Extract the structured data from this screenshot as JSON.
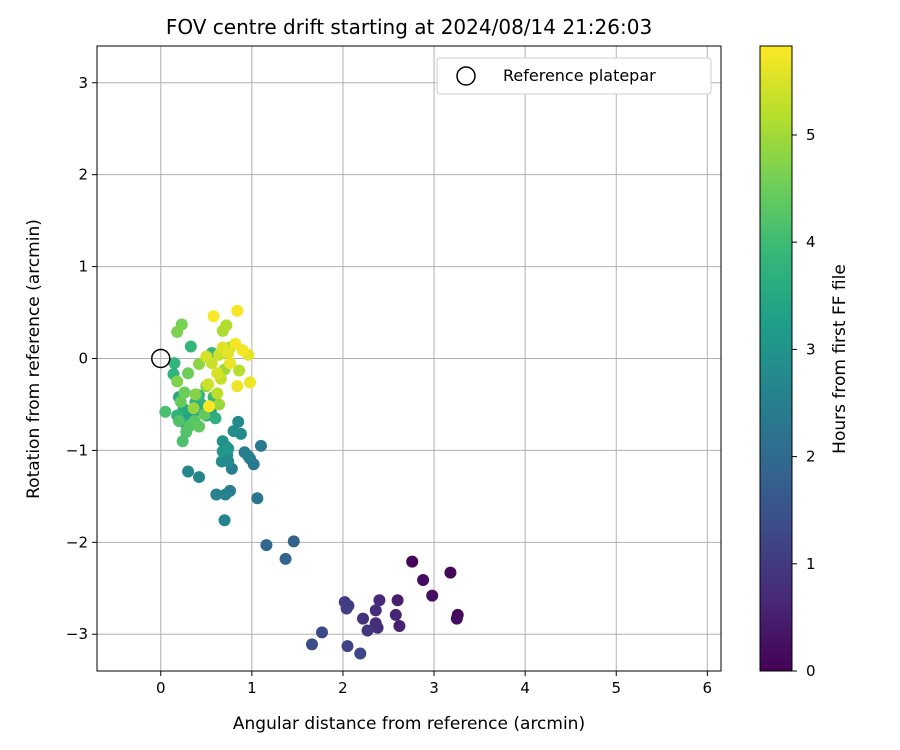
{
  "chart_data": {
    "type": "scatter",
    "title": "FOV centre drift starting at 2024/08/14 21:26:03",
    "xlabel": "Angular distance from reference (arcmin)",
    "ylabel": "Rotation from reference (arcmin)",
    "xlim": [
      -0.7,
      6.15
    ],
    "ylim": [
      -3.4,
      3.4
    ],
    "xticks": [
      0,
      1,
      2,
      3,
      4,
      5,
      6
    ],
    "yticks": [
      -3,
      -2,
      -1,
      0,
      1,
      2,
      3
    ],
    "grid": true,
    "legend": {
      "position": "top-right",
      "entries": [
        "Reference platepar"
      ]
    },
    "reference_point": {
      "name": "Reference platepar",
      "x": 0,
      "y": 0
    },
    "colorbar": {
      "label": "Hours from first FF file",
      "colormap": "viridis",
      "range": [
        0,
        5.83
      ],
      "ticks": [
        0,
        1,
        2,
        3,
        4,
        5
      ]
    },
    "colormap_stops": [
      "#440154",
      "#482878",
      "#3e4989",
      "#31688e",
      "#26828e",
      "#1f9e89",
      "#35b779",
      "#6ece58",
      "#b5de2b",
      "#fde725"
    ],
    "points": [
      [
        2.76,
        -2.21,
        0.05
      ],
      [
        3.18,
        -2.33,
        0.1
      ],
      [
        2.88,
        -2.41,
        0.2
      ],
      [
        2.98,
        -2.58,
        0.25
      ],
      [
        3.26,
        -2.79,
        0.15
      ],
      [
        3.25,
        -2.83,
        0.2
      ],
      [
        2.6,
        -2.63,
        0.5
      ],
      [
        2.62,
        -2.91,
        0.55
      ],
      [
        2.58,
        -2.79,
        0.6
      ],
      [
        2.4,
        -2.63,
        0.65
      ],
      [
        2.36,
        -2.74,
        0.75
      ],
      [
        2.36,
        -2.88,
        0.7
      ],
      [
        2.38,
        -2.93,
        0.8
      ],
      [
        2.22,
        -2.83,
        0.85
      ],
      [
        2.27,
        -2.96,
        0.9
      ],
      [
        2.02,
        -2.65,
        1.0
      ],
      [
        2.06,
        -2.69,
        1.05
      ],
      [
        2.04,
        -2.72,
        1.1
      ],
      [
        2.05,
        -3.13,
        1.2
      ],
      [
        2.19,
        -3.21,
        1.25
      ],
      [
        1.77,
        -2.98,
        1.3
      ],
      [
        1.66,
        -3.11,
        1.4
      ],
      [
        1.46,
        -1.99,
        1.8
      ],
      [
        1.37,
        -2.18,
        1.85
      ],
      [
        1.16,
        -2.03,
        1.95
      ],
      [
        1.06,
        -1.52,
        2.3
      ],
      [
        0.76,
        -1.44,
        2.5
      ],
      [
        0.61,
        -1.48,
        2.6
      ],
      [
        0.71,
        -1.48,
        2.6
      ],
      [
        0.7,
        -1.76,
        2.65
      ],
      [
        0.42,
        -1.29,
        2.7
      ],
      [
        0.3,
        -1.23,
        2.7
      ],
      [
        1.1,
        -0.95,
        2.4
      ],
      [
        1.02,
        -1.15,
        2.35
      ],
      [
        0.98,
        -1.09,
        2.4
      ],
      [
        0.92,
        -1.02,
        2.45
      ],
      [
        0.96,
        -1.06,
        2.55
      ],
      [
        0.88,
        -0.82,
        2.75
      ],
      [
        0.85,
        -0.69,
        2.8
      ],
      [
        0.8,
        -0.79,
        2.9
      ],
      [
        0.78,
        -1.2,
        2.5
      ],
      [
        0.68,
        -0.9,
        2.95
      ],
      [
        0.72,
        -0.96,
        2.9
      ],
      [
        0.73,
        -1.05,
        2.8
      ],
      [
        0.67,
        -1.12,
        2.85
      ],
      [
        0.74,
        -1.12,
        2.75
      ],
      [
        0.68,
        -1.01,
        3.0
      ],
      [
        0.74,
        -0.98,
        3.1
      ],
      [
        0.4,
        -0.55,
        3.2
      ],
      [
        0.5,
        -0.62,
        3.3
      ],
      [
        0.55,
        -0.58,
        3.35
      ],
      [
        0.35,
        -0.6,
        3.4
      ],
      [
        0.3,
        -0.63,
        3.4
      ],
      [
        0.25,
        -0.55,
        3.5
      ],
      [
        0.2,
        -0.42,
        3.5
      ],
      [
        0.28,
        -0.72,
        3.55
      ],
      [
        0.38,
        -0.48,
        3.6
      ],
      [
        0.45,
        -0.5,
        3.65
      ],
      [
        0.6,
        -0.65,
        3.7
      ],
      [
        0.18,
        -0.62,
        3.75
      ],
      [
        0.15,
        -0.05,
        3.8
      ],
      [
        0.14,
        -0.17,
        3.8
      ],
      [
        0.33,
        0.13,
        3.85
      ],
      [
        0.42,
        -0.4,
        3.9
      ],
      [
        0.56,
        0.06,
        3.9
      ],
      [
        0.58,
        -0.42,
        3.95
      ],
      [
        0.05,
        -0.58,
        4.1
      ],
      [
        0.24,
        -0.9,
        4.15
      ],
      [
        0.2,
        -0.68,
        4.2
      ],
      [
        0.28,
        -0.8,
        4.2
      ],
      [
        0.32,
        -0.73,
        4.25
      ],
      [
        0.37,
        -0.68,
        4.3
      ],
      [
        0.42,
        -0.74,
        4.35
      ],
      [
        0.48,
        -0.61,
        4.4
      ],
      [
        0.22,
        -0.47,
        4.45
      ],
      [
        0.26,
        -0.37,
        4.5
      ],
      [
        0.3,
        -0.16,
        4.5
      ],
      [
        0.23,
        0.37,
        4.6
      ],
      [
        0.18,
        0.29,
        4.65
      ],
      [
        0.18,
        -0.25,
        4.7
      ],
      [
        0.38,
        -0.39,
        4.75
      ],
      [
        0.42,
        -0.06,
        4.8
      ],
      [
        0.5,
        -0.3,
        4.85
      ],
      [
        0.36,
        -0.54,
        4.9
      ],
      [
        0.64,
        -0.5,
        4.95
      ],
      [
        0.7,
        -0.12,
        5.0
      ],
      [
        0.76,
        0.12,
        5.05
      ],
      [
        0.68,
        0.3,
        5.1
      ],
      [
        0.72,
        0.36,
        5.15
      ],
      [
        0.86,
        -0.13,
        5.2
      ],
      [
        0.62,
        -0.38,
        5.25
      ],
      [
        0.66,
        -0.22,
        5.3
      ],
      [
        0.56,
        -0.05,
        5.35
      ],
      [
        0.52,
        -0.28,
        5.4
      ],
      [
        0.5,
        0.02,
        5.45
      ],
      [
        0.64,
        0.04,
        5.4
      ],
      [
        0.62,
        -0.16,
        5.5
      ],
      [
        0.68,
        0.12,
        5.55
      ],
      [
        0.74,
        0.06,
        5.6
      ],
      [
        0.76,
        -0.05,
        5.65
      ],
      [
        0.84,
        -0.3,
        5.7
      ],
      [
        0.96,
        0.04,
        5.6
      ],
      [
        0.98,
        -0.26,
        5.7
      ],
      [
        0.9,
        0.09,
        5.75
      ],
      [
        0.82,
        0.16,
        5.75
      ],
      [
        0.84,
        0.52,
        5.78
      ],
      [
        0.58,
        0.46,
        5.8
      ],
      [
        0.53,
        -0.52,
        5.8
      ]
    ]
  }
}
